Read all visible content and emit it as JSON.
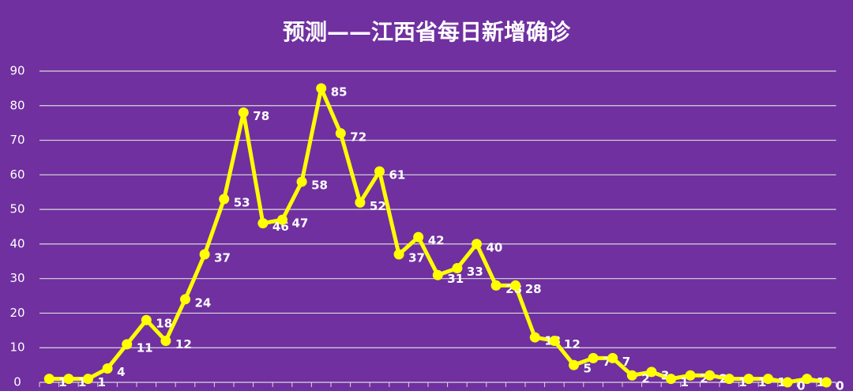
{
  "chart_data": {
    "type": "line",
    "title": "预测——江西省每日新增确诊",
    "categories": [
      null,
      null,
      null,
      null,
      null,
      null,
      null,
      null,
      null,
      null,
      null,
      null,
      null,
      null,
      null,
      null,
      null,
      null,
      null,
      null,
      null,
      null,
      null,
      null,
      null,
      null,
      null,
      null,
      null,
      null,
      null,
      null,
      null,
      null,
      null,
      null,
      null,
      null,
      null,
      null,
      null
    ],
    "series": [
      {
        "color": "#ffff00",
        "values": [
          1,
          1,
          1,
          4,
          11,
          18,
          12,
          24,
          37,
          53,
          78,
          46,
          47,
          58,
          85,
          72,
          52,
          61,
          37,
          42,
          31,
          33,
          40,
          28,
          28,
          13,
          12,
          5,
          7,
          7,
          2,
          3,
          1,
          2,
          2,
          1,
          1,
          1,
          0,
          1,
          0
        ]
      }
    ],
    "ylim": [
      0,
      90
    ],
    "yticks": [
      0,
      10,
      20,
      30,
      40,
      50,
      60,
      70,
      80,
      90
    ],
    "grid": true
  }
}
